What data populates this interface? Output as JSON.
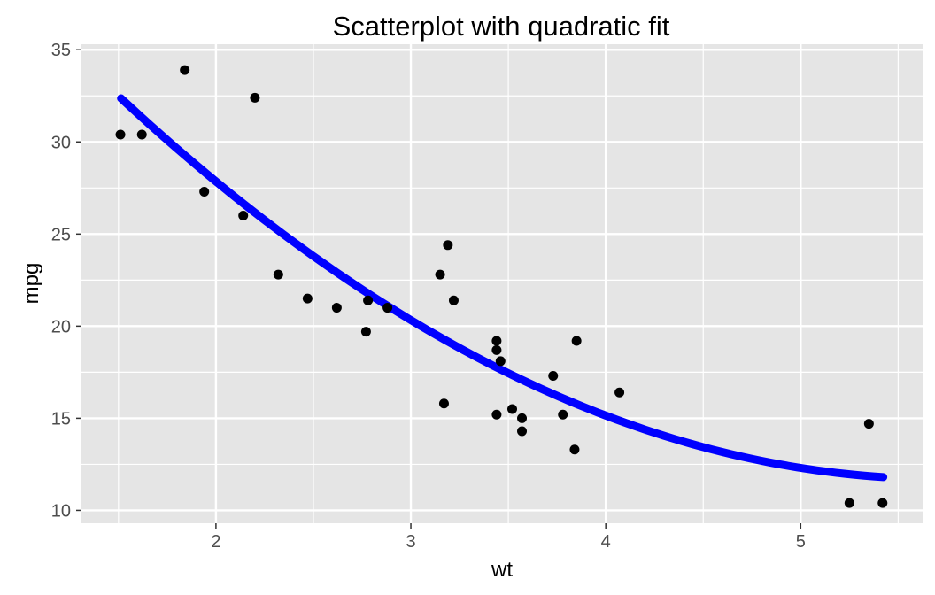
{
  "chart_data": {
    "type": "scatter",
    "title": "Scatterplot with quadratic fit",
    "xlabel": "wt",
    "ylabel": "mpg",
    "xlim": [
      1.31,
      5.63
    ],
    "ylim": [
      9.3,
      35.3
    ],
    "x_ticks": [
      2,
      3,
      4,
      5
    ],
    "x_tick_labels": [
      "2",
      "3",
      "4",
      "5"
    ],
    "y_ticks": [
      10,
      15,
      20,
      25,
      30,
      35
    ],
    "y_tick_labels": [
      "10",
      "15",
      "20",
      "25",
      "30",
      "35"
    ],
    "grid": true,
    "legend": "none",
    "points": [
      {
        "x": 1.51,
        "y": 30.4
      },
      {
        "x": 1.62,
        "y": 30.4
      },
      {
        "x": 1.84,
        "y": 33.9
      },
      {
        "x": 1.94,
        "y": 27.3
      },
      {
        "x": 2.14,
        "y": 26.0
      },
      {
        "x": 2.2,
        "y": 32.4
      },
      {
        "x": 2.32,
        "y": 22.8
      },
      {
        "x": 2.47,
        "y": 21.5
      },
      {
        "x": 2.62,
        "y": 21.0
      },
      {
        "x": 2.77,
        "y": 19.7
      },
      {
        "x": 2.78,
        "y": 21.4
      },
      {
        "x": 2.88,
        "y": 21.0
      },
      {
        "x": 3.15,
        "y": 22.8
      },
      {
        "x": 3.17,
        "y": 15.8
      },
      {
        "x": 3.19,
        "y": 24.4
      },
      {
        "x": 3.22,
        "y": 21.4
      },
      {
        "x": 3.44,
        "y": 18.7
      },
      {
        "x": 3.44,
        "y": 19.2
      },
      {
        "x": 3.44,
        "y": 15.2
      },
      {
        "x": 3.46,
        "y": 18.1
      },
      {
        "x": 3.52,
        "y": 15.5
      },
      {
        "x": 3.57,
        "y": 15.0
      },
      {
        "x": 3.57,
        "y": 14.3
      },
      {
        "x": 3.73,
        "y": 17.3
      },
      {
        "x": 3.78,
        "y": 15.2
      },
      {
        "x": 3.84,
        "y": 13.3
      },
      {
        "x": 3.85,
        "y": 19.2
      },
      {
        "x": 4.07,
        "y": 16.4
      },
      {
        "x": 5.25,
        "y": 10.4
      },
      {
        "x": 5.35,
        "y": 14.7
      },
      {
        "x": 5.42,
        "y": 10.4
      }
    ],
    "fit": {
      "type": "quadratic",
      "coefficients": [
        49.93,
        -13.38,
        1.171
      ],
      "x_range": [
        1.513,
        5.424
      ],
      "color": "#0000ff"
    },
    "colors": {
      "panel": "#e5e5e5",
      "grid": "#ffffff",
      "point": "#000000",
      "fit": "#0000ff"
    }
  }
}
